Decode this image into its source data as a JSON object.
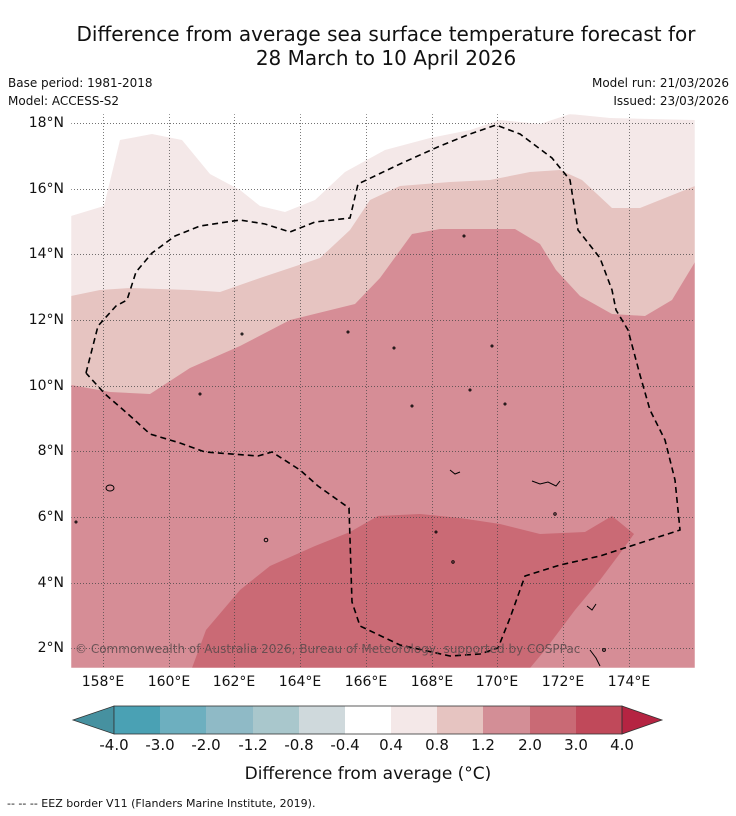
{
  "title_line1": "Difference from average sea surface temperature forecast for",
  "title_line2": "28 March to 10 April 2026",
  "meta": {
    "base_period": "Base period: 1981-2018",
    "model": "Model: ACCESS-S2",
    "model_run": "Model run: 21/03/2026",
    "issued": "Issued: 23/03/2026"
  },
  "map": {
    "lat_ticks": [
      "18°N",
      "16°N",
      "14°N",
      "12°N",
      "10°N",
      "8°N",
      "6°N",
      "4°N",
      "2°N"
    ],
    "lon_ticks": [
      "158°E",
      "160°E",
      "162°E",
      "164°E",
      "166°E",
      "168°E",
      "170°E",
      "172°E",
      "174°E"
    ],
    "copyright": "© Commonwealth of Australia 2026, Bureau of Meteorology, supported by COSPPac"
  },
  "colorbar": {
    "labels": [
      "-4.0",
      "-3.0",
      "-2.0",
      "-1.2",
      "-0.8",
      "-0.4",
      "0.4",
      "0.8",
      "1.2",
      "2.0",
      "3.0",
      "4.0"
    ],
    "colors": [
      "#4691a0",
      "#4aa1b4",
      "#6dafbf",
      "#8fbac6",
      "#a9c7cc",
      "#cfd9dc",
      "#ffffff",
      "#f4e8e8",
      "#e6c4c1",
      "#d38e96",
      "#c96a75",
      "#c0495a",
      "#b52442"
    ],
    "title": "Difference from average (°C)"
  },
  "legend": {
    "eez": "--  --  -- EEZ border V11 (Flanders Marine Institute, 2019)."
  },
  "anomaly_colors": {
    "c04_08": "#f4e8e8",
    "c08_12": "#e6c4c1",
    "c12_20": "#d68d96",
    "c20_30": "#ca6a75"
  }
}
